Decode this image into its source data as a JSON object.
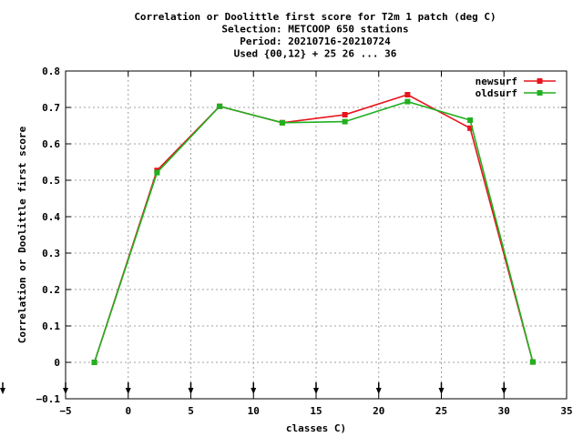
{
  "chart_data": {
    "type": "line",
    "title_lines": [
      "Correlation or Doolittle first score  for T2m 1 patch (deg C)",
      "Selection: METCOOP    650 stations",
      "Period: 20210716-20210724",
      "Used {00,12} + 25 26 ... 36"
    ],
    "xlabel": "classes C)",
    "ylabel": "Correlation or Doolittle first score",
    "xlim": [
      -5,
      35
    ],
    "ylim": [
      -0.1,
      0.8
    ],
    "xticks": [
      -5,
      0,
      5,
      10,
      15,
      20,
      25,
      30,
      35
    ],
    "yticks": [
      -0.1,
      0,
      0.1,
      0.2,
      0.3,
      0.4,
      0.5,
      0.6,
      0.7,
      0.8
    ],
    "grid": true,
    "legend_position": "top-right",
    "arrow_markers_x": [
      -5,
      0,
      5,
      10,
      15,
      20,
      25,
      30
    ],
    "series": [
      {
        "name": "newsurf",
        "color": "#e8141c",
        "x": [
          -2.7,
          2.3,
          7.3,
          12.3,
          17.3,
          22.3,
          27.3,
          32.3
        ],
        "values": [
          0.0,
          0.527,
          0.703,
          0.658,
          0.68,
          0.735,
          0.643,
          0.001
        ]
      },
      {
        "name": "oldsurf",
        "color": "#20b020",
        "x": [
          -2.7,
          2.3,
          7.3,
          12.3,
          17.3,
          22.3,
          27.3,
          32.3
        ],
        "values": [
          0.0,
          0.521,
          0.703,
          0.658,
          0.661,
          0.716,
          0.665,
          0.001
        ]
      }
    ]
  }
}
